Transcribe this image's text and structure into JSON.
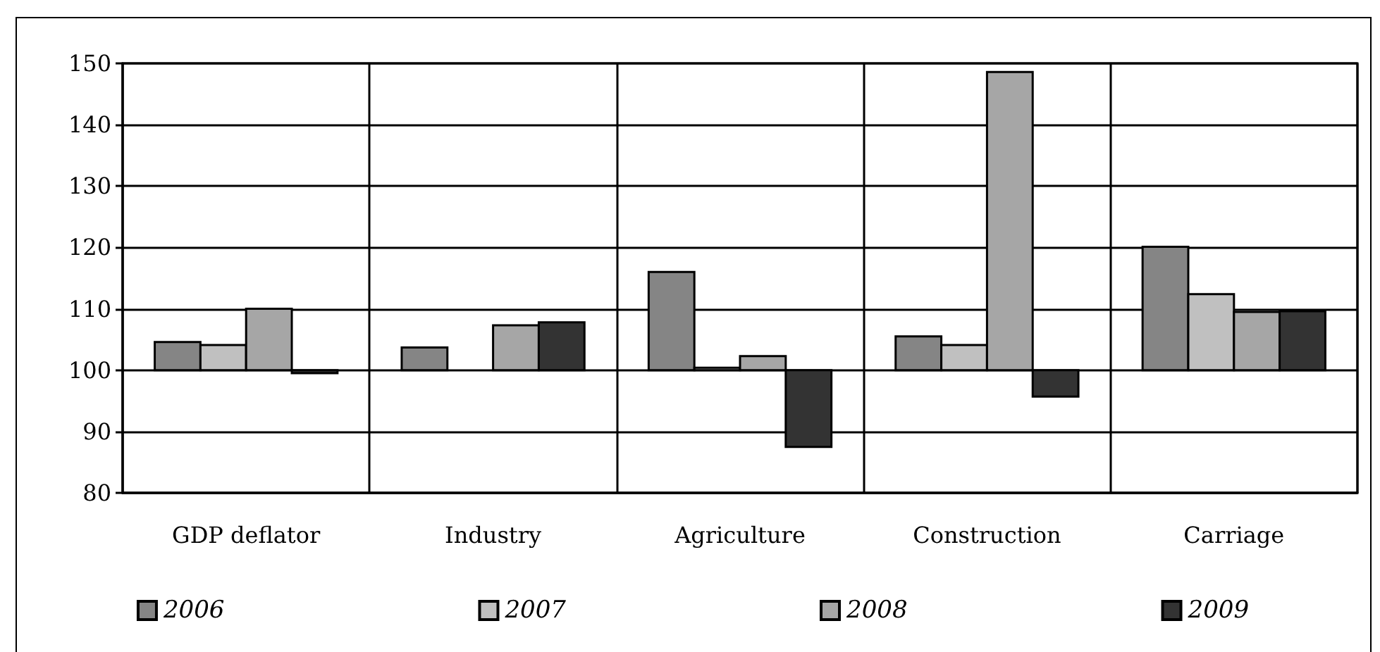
{
  "chart_data": {
    "type": "bar",
    "categories": [
      "GDP deflator",
      "Industry",
      "Agriculture",
      "Construction",
      "Carriage"
    ],
    "series": [
      {
        "name": "2006",
        "color": "#858585",
        "base": [
          100,
          100,
          100,
          100,
          100
        ],
        "values": [
          4.6,
          3.7,
          16.0,
          5.5,
          20.1
        ]
      },
      {
        "name": "2007",
        "color": "#c0c0c0",
        "base": [
          100,
          null,
          100,
          100,
          100
        ],
        "values": [
          4.1,
          null,
          0.4,
          4.1,
          12.4
        ]
      },
      {
        "name": "2008",
        "color": "#a6a6a6",
        "base": [
          100,
          100,
          100,
          100,
          100
        ],
        "values": [
          10.0,
          7.3,
          2.3,
          48.6,
          9.5
        ]
      },
      {
        "name": "2009",
        "color": "#333333",
        "base": [
          100,
          100,
          100,
          100,
          100
        ],
        "values": [
          -0.5,
          7.8,
          -12.5,
          -4.3,
          9.6
        ]
      }
    ],
    "ylim": [
      80,
      150
    ],
    "yticks": [
      80,
      90,
      100,
      110,
      120,
      130,
      140,
      150
    ],
    "grid": true,
    "legend": "bottom"
  }
}
